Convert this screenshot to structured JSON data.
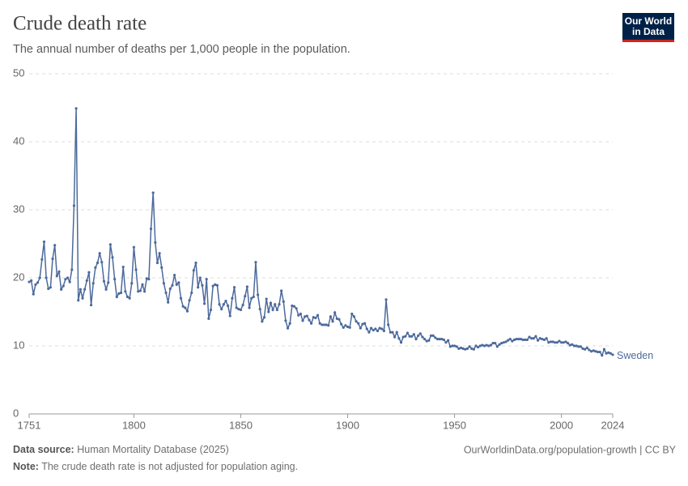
{
  "chart_data": {
    "type": "line",
    "title": "Crude death rate",
    "subtitle": "The annual number of deaths per 1,000 people in the population.",
    "logo": [
      "Our World",
      "in Data"
    ],
    "source_label": "Data source:",
    "source": "Human Mortality Database (2025)",
    "url": "OurWorldinData.org/population-growth | CC BY",
    "note_label": "Note:",
    "note": "The crude death rate is not adjusted for population aging.",
    "xlim": [
      1751,
      2024
    ],
    "xticks": [
      1751,
      1800,
      1850,
      1900,
      1950,
      2000,
      2024
    ],
    "ylim": [
      0,
      50
    ],
    "yticks": [
      0,
      10,
      20,
      30,
      40,
      50
    ],
    "grid": true,
    "x": [
      1751,
      1752,
      1753,
      1754,
      1755,
      1756,
      1757,
      1758,
      1759,
      1760,
      1761,
      1762,
      1763,
      1764,
      1765,
      1766,
      1767,
      1768,
      1769,
      1770,
      1771,
      1772,
      1773,
      1774,
      1775,
      1776,
      1777,
      1778,
      1779,
      1780,
      1781,
      1782,
      1783,
      1784,
      1785,
      1786,
      1787,
      1788,
      1789,
      1790,
      1791,
      1792,
      1793,
      1794,
      1795,
      1796,
      1797,
      1798,
      1799,
      1800,
      1801,
      1802,
      1803,
      1804,
      1805,
      1806,
      1807,
      1808,
      1809,
      1810,
      1811,
      1812,
      1813,
      1814,
      1815,
      1816,
      1817,
      1818,
      1819,
      1820,
      1821,
      1822,
      1823,
      1824,
      1825,
      1826,
      1827,
      1828,
      1829,
      1830,
      1831,
      1832,
      1833,
      1834,
      1835,
      1836,
      1837,
      1838,
      1839,
      1840,
      1841,
      1842,
      1843,
      1844,
      1845,
      1846,
      1847,
      1848,
      1849,
      1850,
      1851,
      1852,
      1853,
      1854,
      1855,
      1856,
      1857,
      1858,
      1859,
      1860,
      1861,
      1862,
      1863,
      1864,
      1865,
      1866,
      1867,
      1868,
      1869,
      1870,
      1871,
      1872,
      1873,
      1874,
      1875,
      1876,
      1877,
      1878,
      1879,
      1880,
      1881,
      1882,
      1883,
      1884,
      1885,
      1886,
      1887,
      1888,
      1889,
      1890,
      1891,
      1892,
      1893,
      1894,
      1895,
      1896,
      1897,
      1898,
      1899,
      1900,
      1901,
      1902,
      1903,
      1904,
      1905,
      1906,
      1907,
      1908,
      1909,
      1910,
      1911,
      1912,
      1913,
      1914,
      1915,
      1916,
      1917,
      1918,
      1919,
      1920,
      1921,
      1922,
      1923,
      1924,
      1925,
      1926,
      1927,
      1928,
      1929,
      1930,
      1931,
      1932,
      1933,
      1934,
      1935,
      1936,
      1937,
      1938,
      1939,
      1940,
      1941,
      1942,
      1943,
      1944,
      1945,
      1946,
      1947,
      1948,
      1949,
      1950,
      1951,
      1952,
      1953,
      1954,
      1955,
      1956,
      1957,
      1958,
      1959,
      1960,
      1961,
      1962,
      1963,
      1964,
      1965,
      1966,
      1967,
      1968,
      1969,
      1970,
      1971,
      1972,
      1973,
      1974,
      1975,
      1976,
      1977,
      1978,
      1979,
      1980,
      1981,
      1982,
      1983,
      1984,
      1985,
      1986,
      1987,
      1988,
      1989,
      1990,
      1991,
      1992,
      1993,
      1994,
      1995,
      1996,
      1997,
      1998,
      1999,
      2000,
      2001,
      2002,
      2003,
      2004,
      2005,
      2006,
      2007,
      2008,
      2009,
      2010,
      2011,
      2012,
      2013,
      2014,
      2015,
      2016,
      2017,
      2018,
      2019,
      2020,
      2021,
      2022,
      2023,
      2024
    ],
    "series": [
      {
        "name": "Sweden",
        "color": "#4c6a9c",
        "values": [
          19.4,
          19.6,
          17.6,
          19.0,
          19.3,
          20.0,
          22.7,
          25.3,
          20.0,
          18.4,
          18.6,
          22.8,
          24.8,
          20.3,
          20.9,
          18.3,
          18.8,
          19.8,
          20.0,
          19.4,
          21.2,
          30.6,
          44.9,
          16.7,
          18.3,
          17.0,
          18.3,
          19.6,
          20.8,
          16.0,
          19.2,
          21.5,
          22.2,
          23.6,
          22.3,
          19.5,
          18.3,
          19.3,
          24.9,
          23.0,
          19.8,
          17.2,
          17.7,
          17.8,
          21.6,
          18.0,
          17.2,
          17.0,
          19.2,
          24.5,
          21.2,
          18.0,
          18.1,
          19.0,
          18.0,
          19.9,
          19.8,
          27.2,
          32.5,
          25.2,
          22.2,
          23.6,
          21.5,
          19.2,
          17.8,
          16.4,
          18.4,
          18.9,
          20.4,
          19.0,
          19.3,
          17.0,
          15.8,
          15.6,
          15.1,
          16.7,
          17.8,
          21.1,
          22.2,
          18.6,
          20.0,
          18.9,
          16.2,
          19.8,
          14.0,
          15.3,
          18.8,
          19.0,
          18.9,
          16.1,
          15.4,
          16.1,
          16.6,
          15.9,
          14.4,
          17.0,
          18.6,
          15.6,
          15.4,
          15.3,
          16.0,
          17.3,
          18.7,
          15.6,
          17.0,
          17.2,
          22.3,
          17.5,
          15.4,
          13.6,
          14.2,
          16.9,
          15.0,
          16.3,
          15.3,
          16.1,
          15.3,
          16.1,
          18.1,
          16.5,
          13.7,
          12.6,
          13.3,
          15.9,
          15.8,
          15.5,
          14.5,
          14.7,
          13.7,
          14.3,
          14.4,
          13.8,
          13.3,
          14.2,
          14.1,
          14.5,
          13.3,
          13.1,
          13.1,
          13.1,
          13.0,
          14.3,
          13.6,
          14.9,
          14.0,
          13.9,
          13.2,
          12.7,
          13.0,
          12.8,
          12.7,
          14.7,
          14.3,
          13.6,
          13.3,
          12.6,
          13.2,
          13.3,
          12.5,
          12.0,
          12.6,
          12.3,
          12.5,
          12.2,
          12.6,
          12.5,
          12.2,
          16.8,
          13.1,
          12.0,
          12.0,
          11.3,
          12.0,
          11.1,
          10.5,
          11.3,
          11.4,
          11.9,
          11.4,
          11.4,
          11.7,
          11.0,
          11.5,
          11.8,
          11.3,
          11.0,
          10.7,
          10.8,
          11.5,
          11.5,
          11.2,
          11.0,
          11.0,
          11.0,
          10.9,
          10.5,
          10.8,
          9.9,
          10.0,
          10.0,
          9.9,
          9.6,
          9.7,
          9.6,
          9.5,
          9.6,
          9.9,
          9.6,
          9.5,
          10.0,
          9.8,
          10.0,
          10.1,
          10.0,
          10.1,
          10.0,
          10.1,
          10.4,
          10.4,
          9.9,
          10.2,
          10.4,
          10.5,
          10.6,
          10.8,
          11.0,
          10.7,
          10.9,
          11.0,
          11.0,
          11.0,
          10.9,
          10.9,
          10.9,
          11.3,
          11.1,
          11.1,
          11.4,
          10.8,
          11.1,
          11.0,
          10.9,
          11.1,
          10.5,
          10.6,
          10.6,
          10.5,
          10.5,
          10.7,
          10.5,
          10.5,
          10.6,
          10.4,
          10.1,
          10.2,
          10.0,
          10.0,
          9.9,
          9.9,
          9.6,
          9.5,
          9.7,
          9.4,
          9.2,
          9.3,
          9.2,
          9.1,
          9.1,
          8.6,
          9.5,
          8.9,
          9.0,
          8.9,
          8.7
        ]
      }
    ]
  }
}
